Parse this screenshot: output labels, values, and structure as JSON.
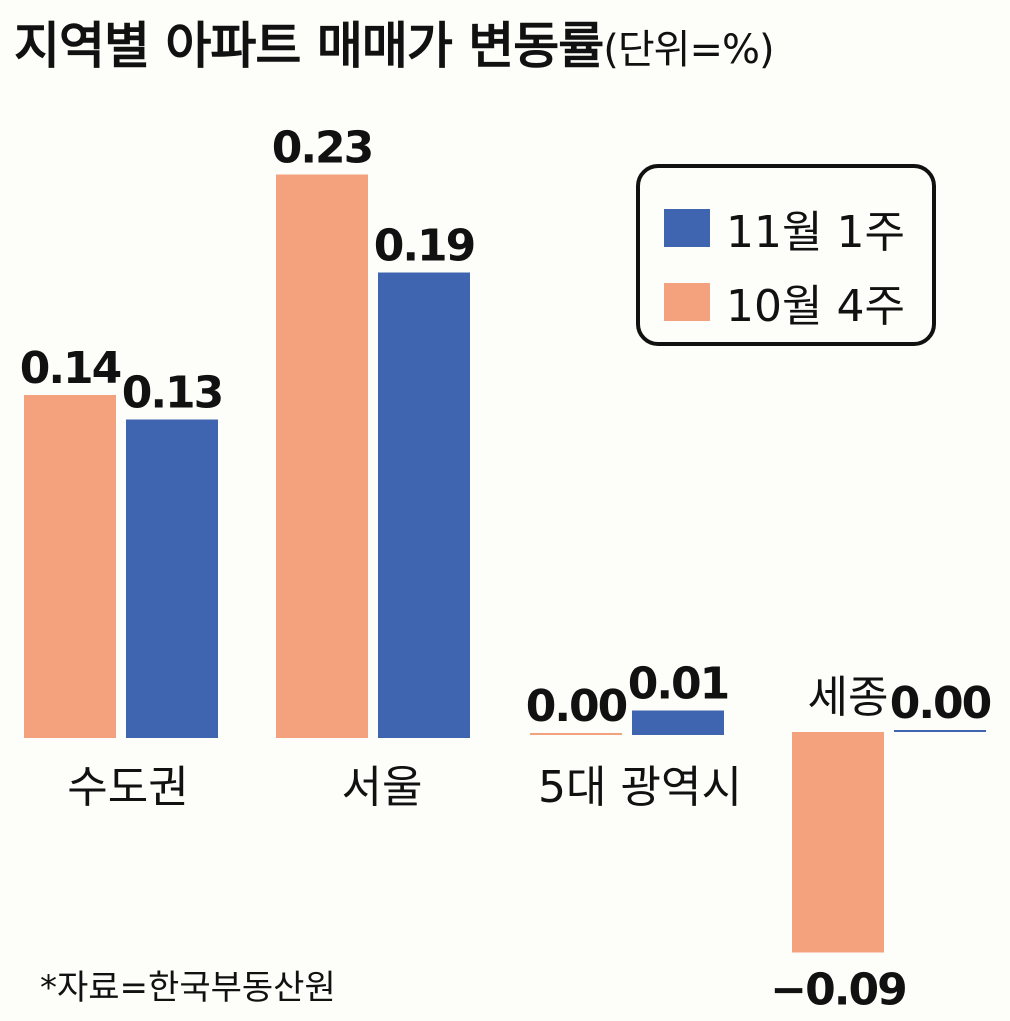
{
  "title": "지역별 아파트 매매가 변동률",
  "unit": "(단위=%)",
  "source": "*자료=한국부동산원",
  "colors": {
    "nov_week1": "#3f64b0",
    "oct_week4": "#f4a27d",
    "text": "#111111",
    "background": "#fdfdf9"
  },
  "chart_data": {
    "type": "bar",
    "categories": [
      "수도권",
      "서울",
      "5대 광역시",
      "세종"
    ],
    "series": [
      {
        "name": "10월 4주",
        "values": [
          0.14,
          0.23,
          0.0,
          -0.09
        ]
      },
      {
        "name": "11월 1주",
        "values": [
          0.13,
          0.19,
          0.01,
          0.0
        ]
      }
    ],
    "value_labels": [
      [
        "0.14",
        "0.23",
        "0.00",
        "−0.09"
      ],
      [
        "0.13",
        "0.19",
        "0.01",
        "0.00"
      ]
    ],
    "legend": [
      "11월 1주",
      "10월 4주"
    ],
    "legend_placement": "top-right",
    "grid": false
  }
}
